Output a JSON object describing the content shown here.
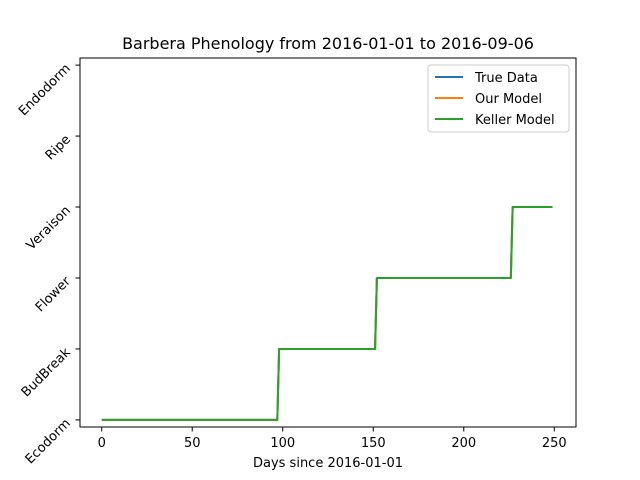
{
  "chart_data": {
    "type": "line",
    "title": "Barbera Phenology from 2016-01-01 to 2016-09-06",
    "xlabel": "Days since 2016-01-01",
    "ylabel": "",
    "xlim": [
      -12,
      262
    ],
    "ylim": [
      -0.1,
      5.1
    ],
    "x_ticks": [
      0,
      50,
      100,
      150,
      200,
      250
    ],
    "y_categories": [
      "Ecodorm",
      "BudBreak",
      "Flower",
      "Veraison",
      "Ripe",
      "Endodorm"
    ],
    "grid": false,
    "legend_position": "top-right",
    "series": [
      {
        "name": "True Data",
        "color": "#1f77b4",
        "x": [
          0,
          97,
          98,
          151,
          152,
          226,
          227,
          249
        ],
        "y": [
          0,
          0,
          1,
          1,
          2,
          2,
          3,
          3
        ]
      },
      {
        "name": "Our Model",
        "color": "#ff7f0e",
        "x": [
          0,
          97,
          98,
          151,
          152,
          226,
          227,
          249
        ],
        "y": [
          0,
          0,
          1,
          1,
          2,
          2,
          3,
          3
        ]
      },
      {
        "name": "Keller Model",
        "color": "#2ca02c",
        "x": [
          0,
          97,
          98,
          151,
          152,
          226,
          227,
          249
        ],
        "y": [
          0,
          0,
          1,
          1,
          2,
          2,
          3,
          3
        ]
      }
    ]
  }
}
